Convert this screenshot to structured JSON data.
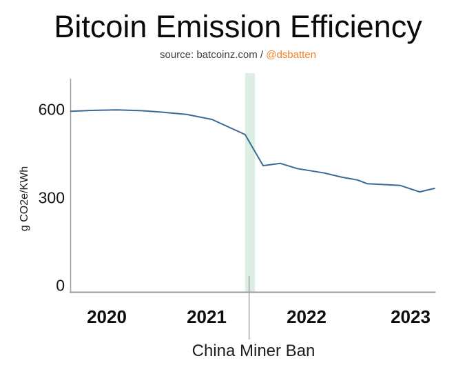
{
  "header": {
    "title": "Bitcoin Emission Efficiency",
    "subtitle_prefix": "source: batcoinz.com / ",
    "subtitle_handle": "@dsbatten",
    "handle_color": "#f0802b"
  },
  "chart_data": {
    "type": "line",
    "title": "Bitcoin Emission Efficiency",
    "subtitle": "source: batcoinz.com / @dsbatten",
    "xlabel": "",
    "ylabel": "g CO2e/KWh",
    "x": [
      2019.64,
      2019.85,
      2020.1,
      2020.35,
      2020.55,
      2020.8,
      2021.05,
      2021.38,
      2021.56,
      2021.73,
      2021.9,
      2022.17,
      2022.34,
      2022.5,
      2022.6,
      2022.77,
      2022.93,
      2023.12,
      2023.27
    ],
    "values": [
      597,
      600,
      602,
      599,
      594,
      586,
      569,
      517,
      410,
      418,
      400,
      385,
      371,
      361,
      348,
      345,
      342,
      320,
      332
    ],
    "series_name": "Bitcoin emission efficiency (g CO2e/KWh)",
    "xticks": [
      "2020",
      "2021",
      "2022",
      "2023"
    ],
    "xtick_values": [
      2020,
      2021,
      2022,
      2023
    ],
    "yticks": [
      "0",
      "300",
      "600"
    ],
    "ytick_values": [
      0,
      300,
      600
    ],
    "ylim": [
      -25,
      735
    ],
    "xlim": [
      2019.64,
      2023.3
    ],
    "grid": false,
    "legend": "none",
    "line_color": "#3b6993",
    "axis_color": "#a0a0a0",
    "annotation": {
      "label": "China Miner Ban",
      "line_x": 2021.42,
      "band_x": [
        2021.38,
        2021.48
      ],
      "band_color": "#ddefe4",
      "leader_color": "#8c8c8c"
    }
  }
}
